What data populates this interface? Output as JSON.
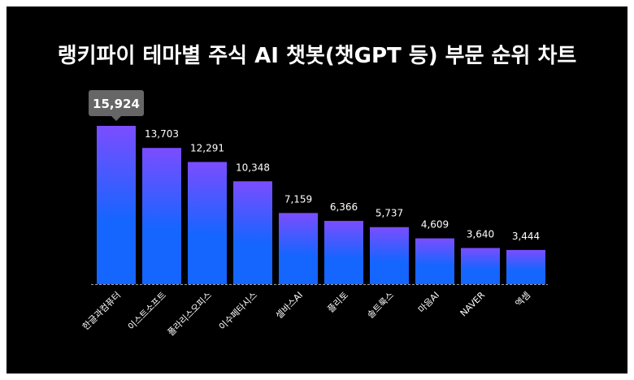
{
  "chart_data": {
    "type": "bar",
    "title": "랭키파이 테마별 주식 AI 챗봇(챗GPT 등) 부문 순위 차트",
    "categories": [
      "한글과컴퓨터",
      "이스트소프트",
      "폴라리스오피스",
      "이수페타시스",
      "셀바스AI",
      "플리토",
      "솔트룩스",
      "마음AI",
      "NAVER",
      "엑셈"
    ],
    "values": [
      15924,
      13703,
      12291,
      10348,
      7159,
      6366,
      5737,
      4609,
      3640,
      3444
    ],
    "value_labels": [
      "15,924",
      "13,703",
      "12,291",
      "10,348",
      "7,159",
      "6,366",
      "5,737",
      "4,609",
      "3,640",
      "3,444"
    ],
    "ylim": [
      0,
      15924
    ],
    "highlight_index": 0,
    "grid": false,
    "colors": {
      "background": "#000000",
      "bar_top": "#7b4dff",
      "bar_bottom": "#1565ff",
      "label": "#ffffff",
      "tooltip": "#666666"
    }
  }
}
